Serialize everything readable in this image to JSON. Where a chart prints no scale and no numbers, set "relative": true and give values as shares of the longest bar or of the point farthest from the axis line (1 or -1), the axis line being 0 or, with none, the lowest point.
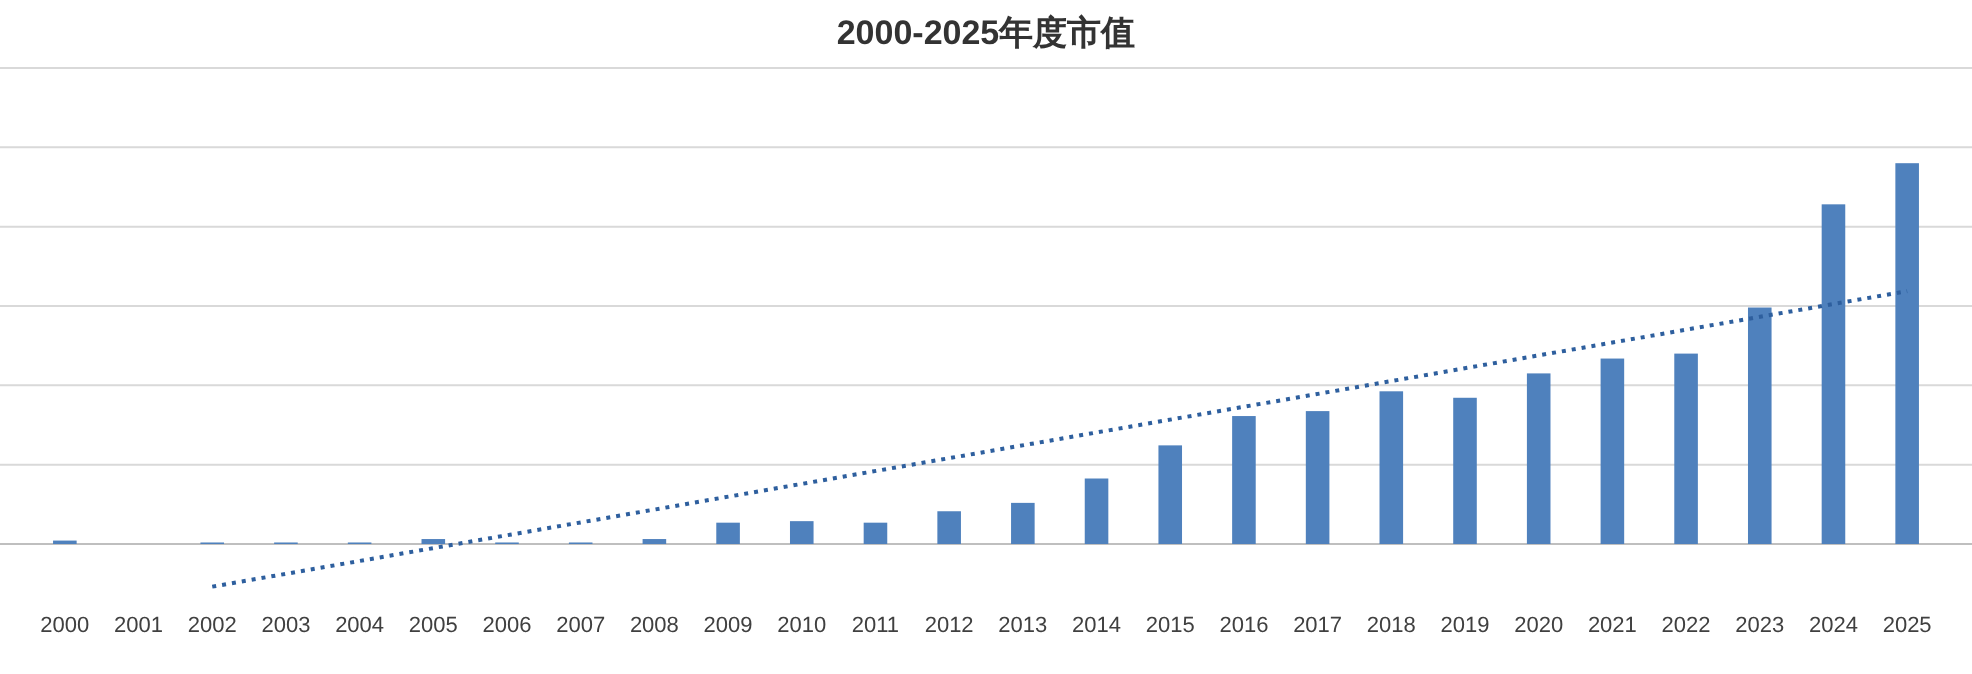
{
  "chart_data": {
    "type": "bar",
    "title": "2000-2025年度市值",
    "relative": true,
    "grid": "y",
    "categories": [
      "2000",
      "2001",
      "2002",
      "2003",
      "2004",
      "2005",
      "2006",
      "2007",
      "2008",
      "2009",
      "2010",
      "2011",
      "2012",
      "2013",
      "2014",
      "2015",
      "2016",
      "2017",
      "2018",
      "2019",
      "2020",
      "2021",
      "2022",
      "2023",
      "2024",
      "2025"
    ],
    "series": [
      {
        "color": "#4f81bd",
        "values": [
          0.009,
          0,
          0.004,
          0.004,
          0.004,
          0.013,
          0.004,
          0.004,
          0.013,
          0.056,
          0.06,
          0.056,
          0.086,
          0.108,
          0.172,
          0.259,
          0.336,
          0.349,
          0.401,
          0.384,
          0.448,
          0.487,
          0.5,
          0.621,
          0.892,
          1
        ]
      },
      {
        "type": "line",
        "line_style": "dotted",
        "color": "#2e5f9e",
        "values": [
          null,
          null,
          -0.112,
          null,
          null,
          null,
          null,
          null,
          null,
          null,
          null,
          null,
          null,
          null,
          null,
          null,
          null,
          null,
          null,
          null,
          null,
          null,
          null,
          null,
          null,
          0.664
        ]
      }
    ]
  }
}
